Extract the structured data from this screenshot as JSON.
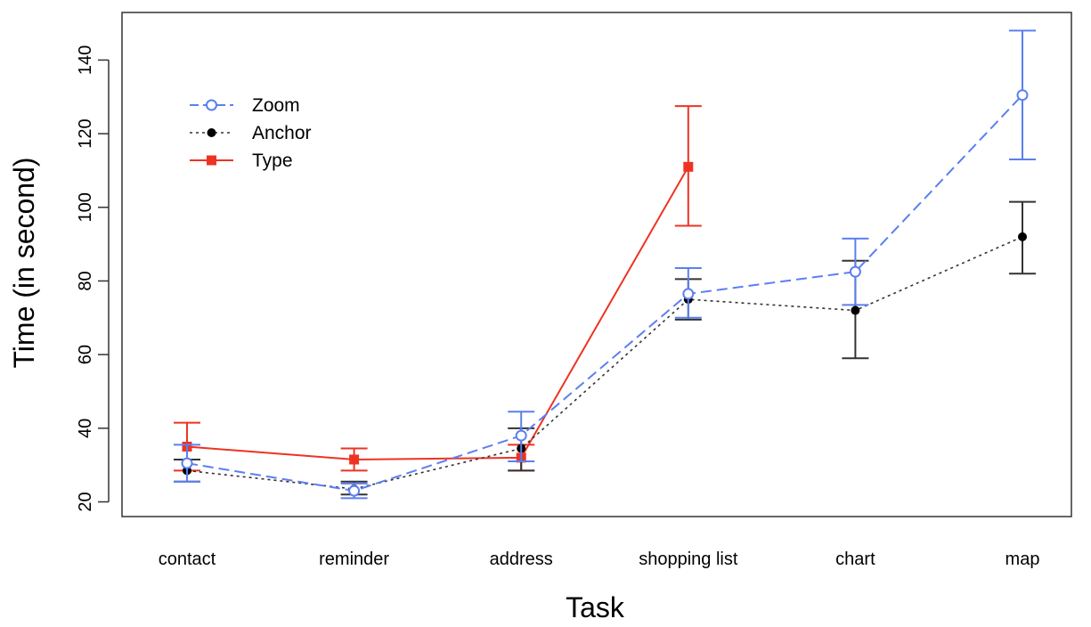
{
  "chart_data": {
    "type": "line",
    "title": "",
    "xlabel": "Task",
    "ylabel": "Time (in second)",
    "ylim": [
      15,
      150
    ],
    "yticks": [
      "20",
      "40",
      "60",
      "80",
      "100",
      "120",
      "140"
    ],
    "categories": [
      "contact",
      "reminder",
      "address",
      "shopping list",
      "chart",
      "map"
    ],
    "grid": false,
    "legend_position": "top-left",
    "series": [
      {
        "name": "Zoom",
        "color": "#5b7ff0",
        "line_style": "dashed",
        "marker": "open-circle",
        "points": [
          {
            "category": "contact",
            "value": 30.5,
            "low": 25.5,
            "high": 35.5
          },
          {
            "category": "reminder",
            "value": 23,
            "low": 21,
            "high": 25
          },
          {
            "category": "address",
            "value": 38,
            "low": 31,
            "high": 44.5
          },
          {
            "category": "shopping list",
            "value": 76.5,
            "low": 70,
            "high": 83.5
          },
          {
            "category": "chart",
            "value": 82.5,
            "low": 73.5,
            "high": 91.5
          },
          {
            "category": "map",
            "value": 130.5,
            "low": 113,
            "high": 148
          }
        ]
      },
      {
        "name": "Anchor",
        "color": "#333333",
        "line_style": "dotted",
        "marker": "filled-circle",
        "points": [
          {
            "category": "contact",
            "value": 28.5,
            "low": 25.5,
            "high": 31.5
          },
          {
            "category": "reminder",
            "value": 23.5,
            "low": 22,
            "high": 25.5
          },
          {
            "category": "address",
            "value": 34.5,
            "low": 28.5,
            "high": 40
          },
          {
            "category": "shopping list",
            "value": 75,
            "low": 69.5,
            "high": 80.5
          },
          {
            "category": "chart",
            "value": 72,
            "low": 59,
            "high": 85.5
          },
          {
            "category": "map",
            "value": 92,
            "low": 82,
            "high": 101.5
          }
        ]
      },
      {
        "name": "Type",
        "color": "#ee3322",
        "line_style": "solid",
        "marker": "filled-square",
        "points": [
          {
            "category": "contact",
            "value": 35,
            "low": 28.5,
            "high": 41.5
          },
          {
            "category": "reminder",
            "value": 31.5,
            "low": 28.5,
            "high": 34.5
          },
          {
            "category": "address",
            "value": 32,
            "low": 28.5,
            "high": 35.5
          },
          {
            "category": "shopping list",
            "value": 111,
            "low": 95,
            "high": 127.5
          }
        ]
      }
    ]
  }
}
